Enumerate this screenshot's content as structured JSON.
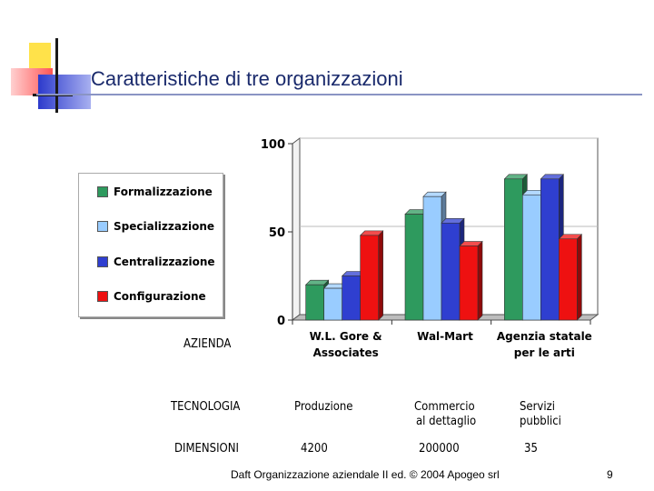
{
  "slide": {
    "title": "Caratteristiche di tre organizzazioni",
    "footer": "Daft Organizzazione aziendale II ed. © 2004 Apogeo srl",
    "page_number": "9"
  },
  "colors": {
    "Formalizzazione": "#2e9a5e",
    "Specializzazione": "#99ccff",
    "Centralizzazione": "#2f3fd0",
    "Configurazione": "#ee1111",
    "title": "#1a2a6c"
  },
  "chart_data": {
    "type": "bar",
    "categories": [
      [
        "W.L. Gore &",
        "Associates"
      ],
      [
        "Wal-Mart"
      ],
      [
        "Agenzia statale",
        "per le arti"
      ]
    ],
    "series": [
      {
        "name": "Formalizzazione",
        "values": [
          20,
          60,
          80
        ]
      },
      {
        "name": "Specializzazione",
        "values": [
          18,
          70,
          71
        ]
      },
      {
        "name": "Centralizzazione",
        "values": [
          25,
          55,
          80
        ]
      },
      {
        "name": "Configurazione",
        "values": [
          48,
          42,
          46
        ]
      }
    ],
    "ylim": [
      0,
      100
    ],
    "y_ticks": [
      "0",
      "50",
      "100"
    ],
    "legend_position": "left",
    "three_d": true
  },
  "table": {
    "header_label": "AZIENDA",
    "rows": [
      {
        "label": "TECNOLOGIA",
        "values": [
          [
            "Produzione"
          ],
          [
            "Commercio",
            "al dettaglio"
          ],
          [
            "Servizi",
            "pubblici"
          ]
        ]
      },
      {
        "label": "DIMENSIONI",
        "values": [
          [
            "4200"
          ],
          [
            "200000"
          ],
          [
            "35"
          ]
        ]
      }
    ]
  }
}
